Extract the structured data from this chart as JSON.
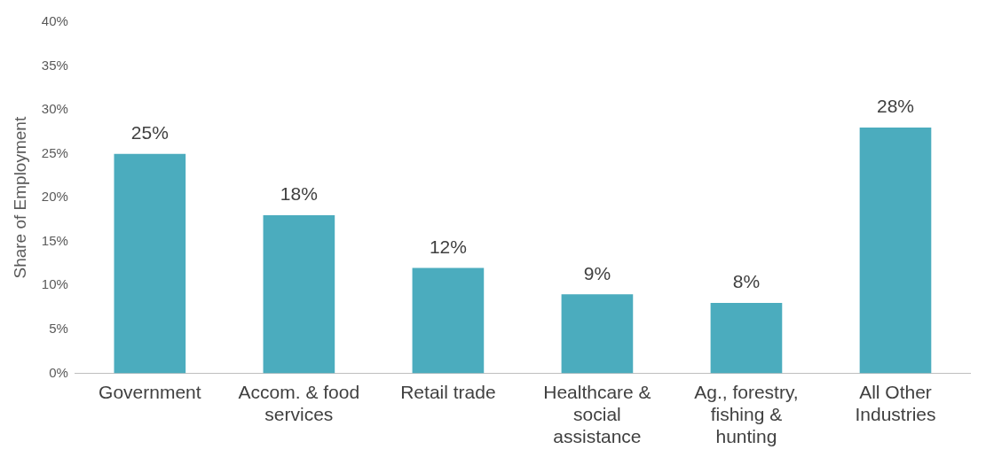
{
  "chart_data": {
    "type": "bar",
    "ylabel": "Share of Employment",
    "categories": [
      "Government",
      "Accom. & food services",
      "Retail trade",
      "Healthcare & social assistance",
      "Ag., forestry, fishing & hunting",
      "All Other Industries"
    ],
    "values": [
      25,
      18,
      12,
      9,
      8,
      28
    ],
    "color": "#4bacbe",
    "ylim": [
      0,
      40
    ],
    "yticks": [
      {
        "value": 0,
        "label": "0%"
      },
      {
        "value": 5,
        "label": "5%"
      },
      {
        "value": 10,
        "label": "10%"
      },
      {
        "value": 15,
        "label": "15%"
      },
      {
        "value": 20,
        "label": "20%"
      },
      {
        "value": 25,
        "label": "25%"
      },
      {
        "value": 30,
        "label": "30%"
      },
      {
        "value": 35,
        "label": "35%"
      },
      {
        "value": 40,
        "label": "40%"
      }
    ],
    "value_labels": [
      "25%",
      "18%",
      "12%",
      "9%",
      "8%",
      "28%"
    ],
    "grid": false,
    "legend": false
  }
}
